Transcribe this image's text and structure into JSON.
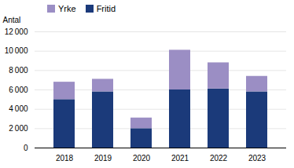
{
  "chart_data": {
    "type": "bar",
    "stacked": true,
    "categories": [
      "2018",
      "2019",
      "2020",
      "2021",
      "2022",
      "2023"
    ],
    "series": [
      {
        "name": "Fritid",
        "color": "#1B3A7A",
        "values": [
          5000,
          5800,
          2000,
          6000,
          6100,
          5800
        ]
      },
      {
        "name": "Yrke",
        "color": "#9B8EC4",
        "values": [
          1800,
          1300,
          1100,
          4100,
          2700,
          1600
        ]
      }
    ],
    "ylabel": "Antal",
    "ylim": [
      0,
      12000
    ],
    "yticks": [
      0,
      {
        "value": 2000,
        "label": "2 000"
      },
      {
        "value": 4000,
        "label": "4 000"
      },
      {
        "value": 6000,
        "label": "6 000"
      },
      {
        "value": 8000,
        "label": "8 000"
      },
      {
        "value": 10000,
        "label": "10 000"
      },
      {
        "value": 12000,
        "label": "12 000"
      }
    ],
    "grid": true,
    "legend": "upper left"
  }
}
